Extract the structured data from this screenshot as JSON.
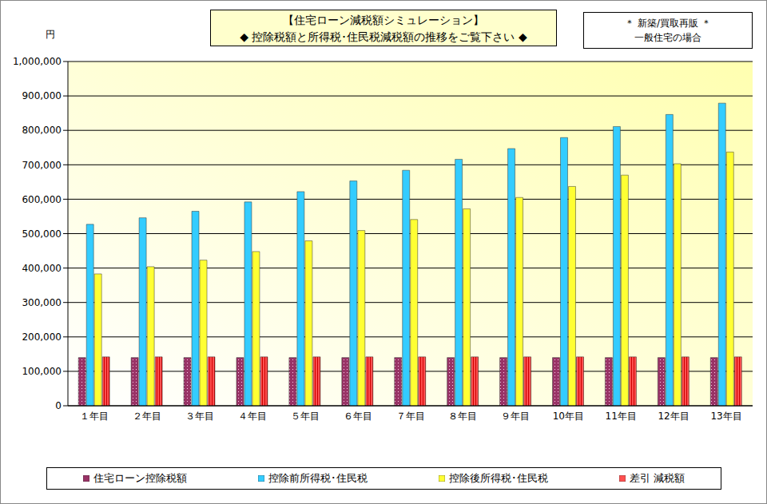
{
  "chart_data": {
    "type": "bar",
    "title": "【住宅ローン減税額シミュレーション】",
    "subtitle": "◆ 控除税額と所得税･住民税減税額の推移をご覧下さい ◆",
    "annotations": [
      "＊ 新築/買取再販 ＊",
      "一般住宅の場合"
    ],
    "y_label": "円",
    "categories": [
      "１年目",
      "２年目",
      "３年目",
      "４年目",
      "５年目",
      "６年目",
      "７年目",
      "８年目",
      "９年目",
      "10年目",
      "11年目",
      "12年目",
      "13年目"
    ],
    "series": [
      {
        "name": "住宅ローン控除税額",
        "color": "#993366",
        "values": [
          140000,
          140000,
          140000,
          140000,
          140000,
          140000,
          140000,
          140000,
          140000,
          140000,
          140000,
          140000,
          140000
        ]
      },
      {
        "name": "控除前所得税･住民税",
        "color": "#33ccff",
        "values": [
          527000,
          546000,
          565000,
          592000,
          622000,
          653000,
          684000,
          716000,
          747000,
          779000,
          811000,
          846000,
          879000
        ]
      },
      {
        "name": "控除後所得税･住民税",
        "color": "#ffff33",
        "values": [
          383000,
          404000,
          423000,
          448000,
          479000,
          509000,
          541000,
          572000,
          605000,
          637000,
          670000,
          703000,
          737000
        ]
      },
      {
        "name": "差引 減税額",
        "color": "#ff5050",
        "values": [
          142000,
          142000,
          142000,
          142000,
          142000,
          142000,
          142000,
          142000,
          142000,
          142000,
          142000,
          142000,
          142000
        ]
      }
    ],
    "ylim": [
      0,
      1000000
    ],
    "yticks": [
      0,
      {
        "value": 100000,
        "label": "100,000"
      },
      {
        "value": 200000,
        "label": "200,000"
      },
      {
        "value": 300000,
        "label": "300,000"
      },
      {
        "value": 400000,
        "label": "400,000"
      },
      {
        "value": 500000,
        "label": "500,000"
      },
      {
        "value": 600000,
        "label": "600,000"
      },
      {
        "value": 700000,
        "label": "700,000"
      },
      {
        "value": 800000,
        "label": "800,000"
      },
      {
        "value": 900000,
        "label": "900,000"
      },
      {
        "value": 1000000,
        "label": "1,000,000"
      }
    ],
    "grid": true,
    "legend": "bottom"
  }
}
